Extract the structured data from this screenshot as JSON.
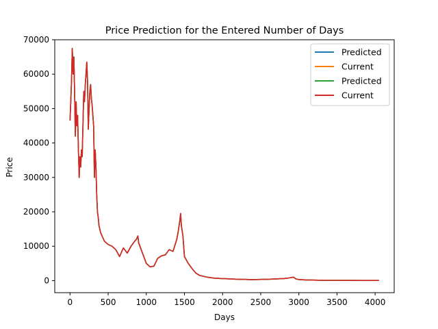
{
  "chart_data": {
    "type": "line",
    "title": "Price Prediction for the Entered Number of Days",
    "xlabel": "Days",
    "ylabel": "Price",
    "xlim": [
      -200,
      4250
    ],
    "ylim": [
      -3500,
      70000
    ],
    "xticks": [
      0,
      500,
      1000,
      1500,
      2000,
      2500,
      3000,
      3500,
      4000
    ],
    "yticks": [
      0,
      10000,
      20000,
      30000,
      40000,
      50000,
      60000,
      70000
    ],
    "legend_position": "top-right",
    "grid": false,
    "x": [
      0,
      10,
      20,
      30,
      40,
      50,
      60,
      70,
      80,
      90,
      100,
      110,
      120,
      130,
      140,
      150,
      160,
      170,
      180,
      190,
      200,
      210,
      220,
      230,
      240,
      250,
      260,
      270,
      280,
      290,
      300,
      310,
      320,
      330,
      340,
      350,
      360,
      370,
      380,
      390,
      400,
      450,
      500,
      550,
      600,
      650,
      700,
      750,
      800,
      850,
      870,
      890,
      900,
      950,
      1000,
      1050,
      1100,
      1150,
      1200,
      1250,
      1300,
      1350,
      1400,
      1420,
      1440,
      1450,
      1460,
      1480,
      1500,
      1550,
      1600,
      1650,
      1700,
      1800,
      1900,
      2000,
      2100,
      2200,
      2300,
      2400,
      2500,
      2600,
      2700,
      2800,
      2850,
      2900,
      2930,
      2960,
      3000,
      3100,
      3200,
      3300,
      3400,
      3500,
      3600,
      3700,
      3800,
      3900,
      4000,
      4050
    ],
    "series": [
      {
        "name": "Predicted",
        "color": "#1f77b4",
        "values": [
          46500,
          52000,
          58000,
          67500,
          60000,
          65000,
          55000,
          42000,
          52000,
          45000,
          48000,
          38000,
          30000,
          36000,
          33000,
          38000,
          36000,
          45000,
          55000,
          52000,
          57000,
          60000,
          63500,
          58000,
          44000,
          50000,
          55000,
          57000,
          53000,
          51000,
          48000,
          45000,
          30000,
          38000,
          33000,
          25000,
          20000,
          18500,
          16000,
          15000,
          14000,
          11500,
          10500,
          10000,
          9000,
          7000,
          9500,
          8000,
          10000,
          11500,
          12000,
          13000,
          11000,
          8000,
          5000,
          4000,
          4200,
          6500,
          7200,
          7500,
          9000,
          8500,
          12000,
          14500,
          17500,
          19500,
          16000,
          13000,
          7000,
          5000,
          3500,
          2200,
          1500,
          1000,
          700,
          600,
          500,
          400,
          350,
          300,
          350,
          400,
          500,
          600,
          700,
          900,
          1000,
          500,
          300,
          200,
          150,
          100,
          90,
          80,
          70,
          60,
          55,
          50,
          45,
          40
        ]
      },
      {
        "name": "Current",
        "color": "#ff7f0e",
        "values": [
          46500,
          52000,
          58000,
          67500,
          60000,
          65000,
          55000,
          42000,
          52000,
          45000,
          48000,
          38000,
          30000,
          36000,
          33000,
          38000,
          36000,
          45000,
          55000,
          52000,
          57000,
          60000,
          63500,
          58000,
          44000,
          50000,
          55000,
          57000,
          53000,
          51000,
          48000,
          45000,
          30000,
          38000,
          33000,
          25000,
          20000,
          18500,
          16000,
          15000,
          14000,
          11500,
          10500,
          10000,
          9000,
          7000,
          9500,
          8000,
          10000,
          11500,
          12000,
          13000,
          11000,
          8000,
          5000,
          4000,
          4200,
          6500,
          7200,
          7500,
          9000,
          8500,
          12000,
          14500,
          17500,
          19500,
          16000,
          13000,
          7000,
          5000,
          3500,
          2200,
          1500,
          1000,
          700,
          600,
          500,
          400,
          350,
          300,
          350,
          400,
          500,
          600,
          700,
          900,
          1000,
          500,
          300,
          200,
          150,
          100,
          90,
          80,
          70,
          60,
          55,
          50,
          45,
          40
        ]
      },
      {
        "name": "Predicted",
        "color": "#2ca02c",
        "values": [
          46500,
          52000,
          58000,
          67500,
          60000,
          65000,
          55000,
          42000,
          52000,
          45000,
          48000,
          38000,
          30000,
          36000,
          33000,
          38000,
          36000,
          45000,
          55000,
          52000,
          57000,
          60000,
          63500,
          58000,
          44000,
          50000,
          55000,
          57000,
          53000,
          51000,
          48000,
          45000,
          30000,
          38000,
          33000,
          25000,
          20000,
          18500,
          16000,
          15000,
          14000,
          11500,
          10500,
          10000,
          9000,
          7000,
          9500,
          8000,
          10000,
          11500,
          12000,
          13000,
          11000,
          8000,
          5000,
          4000,
          4200,
          6500,
          7200,
          7500,
          9000,
          8500,
          12000,
          14500,
          17500,
          19500,
          16000,
          13000,
          7000,
          5000,
          3500,
          2200,
          1500,
          1000,
          700,
          600,
          500,
          400,
          350,
          300,
          350,
          400,
          500,
          600,
          700,
          900,
          1000,
          500,
          300,
          200,
          150,
          100,
          90,
          80,
          70,
          60,
          55,
          50,
          45,
          40
        ]
      },
      {
        "name": "Current",
        "color": "#d62728",
        "values": [
          46500,
          52000,
          58000,
          67500,
          60000,
          65000,
          55000,
          42000,
          52000,
          45000,
          48000,
          38000,
          30000,
          36000,
          33000,
          38000,
          36000,
          45000,
          55000,
          52000,
          57000,
          60000,
          63500,
          58000,
          44000,
          50000,
          55000,
          57000,
          53000,
          51000,
          48000,
          45000,
          30000,
          38000,
          33000,
          25000,
          20000,
          18500,
          16000,
          15000,
          14000,
          11500,
          10500,
          10000,
          9000,
          7000,
          9500,
          8000,
          10000,
          11500,
          12000,
          13000,
          11000,
          8000,
          5000,
          4000,
          4200,
          6500,
          7200,
          7500,
          9000,
          8500,
          12000,
          14500,
          17500,
          19500,
          16000,
          13000,
          7000,
          5000,
          3500,
          2200,
          1500,
          1000,
          700,
          600,
          500,
          400,
          350,
          300,
          350,
          400,
          500,
          600,
          700,
          900,
          1000,
          500,
          300,
          200,
          150,
          100,
          90,
          80,
          70,
          60,
          55,
          50,
          45,
          40
        ]
      }
    ]
  }
}
